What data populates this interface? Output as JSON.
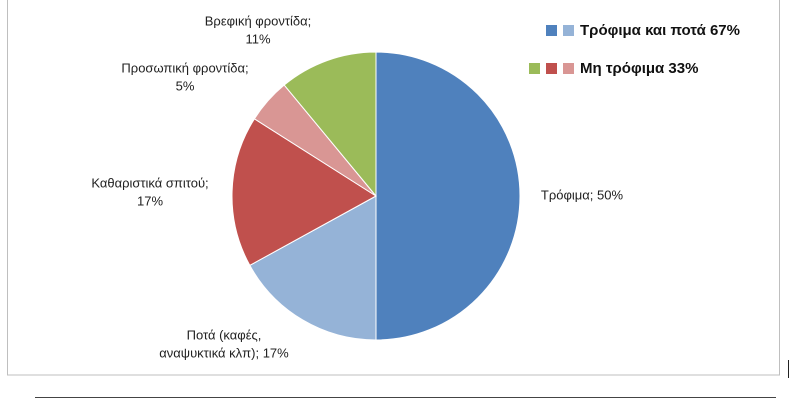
{
  "chart_data": {
    "type": "pie",
    "values": [
      50,
      17,
      17,
      5,
      11
    ],
    "value_labels": [
      [
        "Τρόφιμα; 50%"
      ],
      [
        "Ποτά (καφές,",
        "αναψυκτικά κλπ); 17%"
      ],
      [
        "Καθαριστικά σπιτού;",
        "17%"
      ],
      [
        "Προσωπική φροντίδα;",
        "5%"
      ],
      [
        "Βρεφική φροντίδα;",
        "11%"
      ]
    ],
    "colors": [
      "#4f81bd",
      "#95b3d7",
      "#c0504d",
      "#d99694",
      "#9bbb59"
    ],
    "legend": [
      {
        "label": "Τρόφιμα και ποτά 67%",
        "colors": [
          "#4f81bd",
          "#95b3d7"
        ]
      },
      {
        "label": "Μη τρόφιμα 33%",
        "colors": [
          "#9bbb59",
          "#c0504d",
          "#d99694"
        ]
      }
    ]
  }
}
